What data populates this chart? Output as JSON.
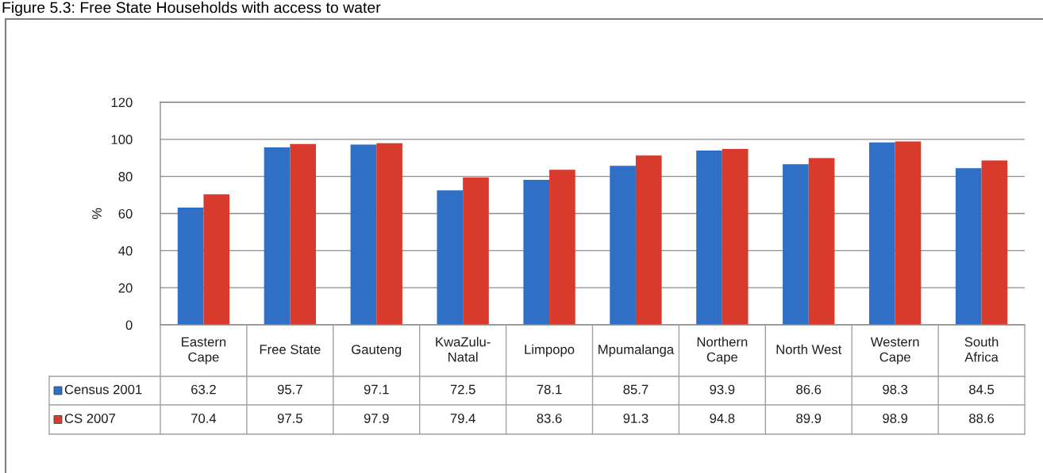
{
  "chart_data": {
    "type": "bar",
    "title": "Figure 5.3: Free State Households with access to water",
    "ylabel": "%",
    "categories": [
      "Eastern Cape",
      "Free State",
      "Gauteng",
      "KwaZulu-Natal",
      "Limpopo",
      "Mpumalanga",
      "Northern Cape",
      "North West",
      "Western Cape",
      "South Africa"
    ],
    "series": [
      {
        "name": "Census 2001",
        "color": "#2f6fc6",
        "values": [
          63.2,
          95.7,
          97.1,
          72.5,
          78.1,
          85.7,
          93.9,
          86.6,
          98.3,
          84.5
        ]
      },
      {
        "name": "CS 2007",
        "color": "#d83a2b",
        "values": [
          70.4,
          97.5,
          97.9,
          79.4,
          83.6,
          91.3,
          94.8,
          89.9,
          98.9,
          88.6
        ]
      }
    ],
    "ylim": [
      0,
      120
    ],
    "yticks": [
      0,
      20,
      40,
      60,
      80,
      100,
      120
    ],
    "grid": "y",
    "legend": "bottom left",
    "data_labels": true
  }
}
